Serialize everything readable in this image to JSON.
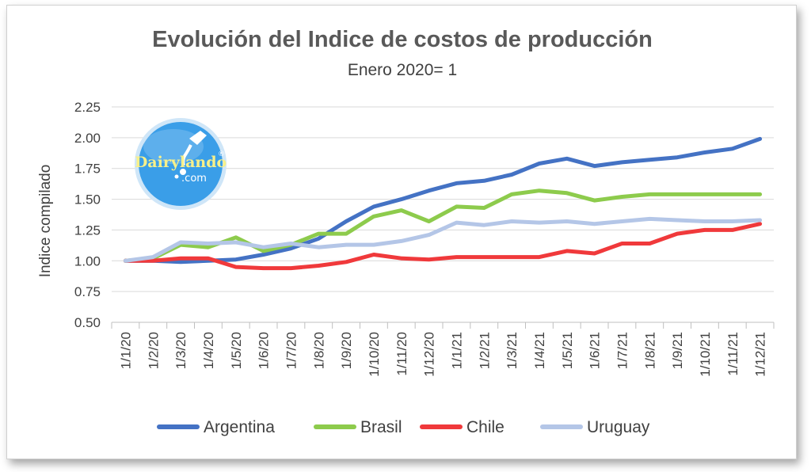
{
  "chart_data": {
    "type": "line",
    "title": "Evolución del Indice de costos de producción",
    "subtitle": "Enero 2020= 1",
    "ylabel": "Indice compilado",
    "xlabel": "",
    "ylim": [
      0.5,
      2.25
    ],
    "yticks": [
      "0.50",
      "0.75",
      "1.00",
      "1.25",
      "1.50",
      "1.75",
      "2.00",
      "2.25"
    ],
    "categories": [
      "1/1/20",
      "1/2/20",
      "1/3/20",
      "1/4/20",
      "1/5/20",
      "1/6/20",
      "1/7/20",
      "1/8/20",
      "1/9/20",
      "1/10/20",
      "1/11/20",
      "1/12/20",
      "1/1/21",
      "1/2/21",
      "1/3/21",
      "1/4/21",
      "1/5/21",
      "1/6/21",
      "1/7/21",
      "1/8/21",
      "1/9/21",
      "1/10/21",
      "1/11/21",
      "1/12/21"
    ],
    "grid": true,
    "legend_position": "bottom",
    "series": [
      {
        "name": "Argentina",
        "color": "#4472c4",
        "values": [
          1.0,
          1.0,
          0.99,
          1.0,
          1.01,
          1.05,
          1.1,
          1.18,
          1.32,
          1.44,
          1.5,
          1.57,
          1.63,
          1.65,
          1.7,
          1.79,
          1.83,
          1.77,
          1.8,
          1.82,
          1.84,
          1.88,
          1.91,
          1.99
        ]
      },
      {
        "name": "Brasil",
        "color": "#8dcb4c",
        "values": [
          1.0,
          1.02,
          1.13,
          1.11,
          1.19,
          1.08,
          1.13,
          1.22,
          1.22,
          1.36,
          1.41,
          1.32,
          1.44,
          1.43,
          1.54,
          1.57,
          1.55,
          1.49,
          1.52,
          1.54,
          1.54,
          1.54,
          1.54,
          1.54
        ]
      },
      {
        "name": "Chile",
        "color": "#f0393b",
        "values": [
          1.0,
          1.0,
          1.02,
          1.02,
          0.95,
          0.94,
          0.94,
          0.96,
          0.99,
          1.05,
          1.02,
          1.01,
          1.03,
          1.03,
          1.03,
          1.03,
          1.08,
          1.06,
          1.14,
          1.14,
          1.22,
          1.25,
          1.25,
          1.3
        ]
      },
      {
        "name": "Uruguay",
        "color": "#b4c6e7",
        "values": [
          1.0,
          1.03,
          1.15,
          1.14,
          1.15,
          1.11,
          1.14,
          1.11,
          1.13,
          1.13,
          1.16,
          1.21,
          1.31,
          1.29,
          1.32,
          1.31,
          1.32,
          1.3,
          1.32,
          1.34,
          1.33,
          1.32,
          1.32,
          1.33
        ]
      }
    ]
  },
  "logo": {
    "name": "Dairylando",
    "suffix": ".com",
    "mark": "®",
    "bg_color": "#3a9ee8"
  }
}
